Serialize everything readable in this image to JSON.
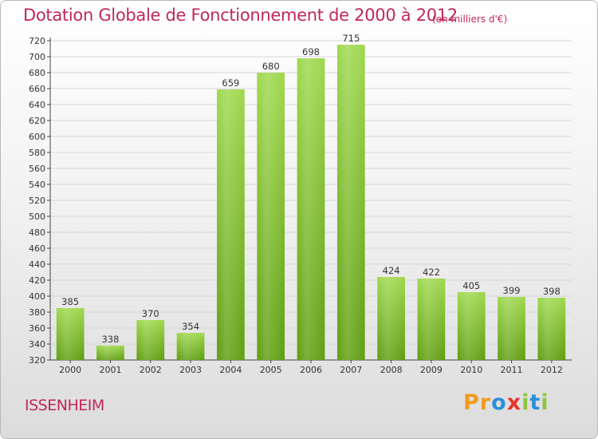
{
  "header": {
    "title": "Dotation Globale de Fonctionnement de 2000 à 2012",
    "subtitle": "(en milliers d'€)"
  },
  "footer": {
    "place": "ISSENHEIM",
    "logo": [
      {
        "char": "P",
        "color": "#f39a1d"
      },
      {
        "char": "r",
        "color": "#f39a1d"
      },
      {
        "char": "o",
        "color": "#2a8fd8"
      },
      {
        "char": "x",
        "color": "#e8332a"
      },
      {
        "char": "i",
        "color": "#8cc63e"
      },
      {
        "char": "t",
        "color": "#2a8fd8"
      },
      {
        "char": "i",
        "color": "#8cc63e"
      }
    ]
  },
  "colors": {
    "bar_light": "#9fd84e",
    "bar_dark": "#5f9f12",
    "grid": "#d6d6d6",
    "title": "#c0285a"
  },
  "chart_data": {
    "type": "bar",
    "title": "Dotation Globale de Fonctionnement de 2000 à 2012",
    "subtitle": "(en milliers d'€)",
    "xlabel": "",
    "ylabel": "",
    "categories": [
      "2000",
      "2001",
      "2002",
      "2003",
      "2004",
      "2005",
      "2006",
      "2007",
      "2008",
      "2009",
      "2010",
      "2011",
      "2012"
    ],
    "values": [
      385,
      338,
      370,
      354,
      659,
      680,
      698,
      715,
      424,
      422,
      405,
      399,
      398
    ],
    "ylim": [
      320,
      720
    ],
    "yticks": [
      320,
      340,
      360,
      380,
      400,
      420,
      440,
      460,
      480,
      500,
      520,
      540,
      560,
      580,
      600,
      620,
      640,
      660,
      680,
      700,
      720
    ],
    "grid": true,
    "legend": "none"
  }
}
